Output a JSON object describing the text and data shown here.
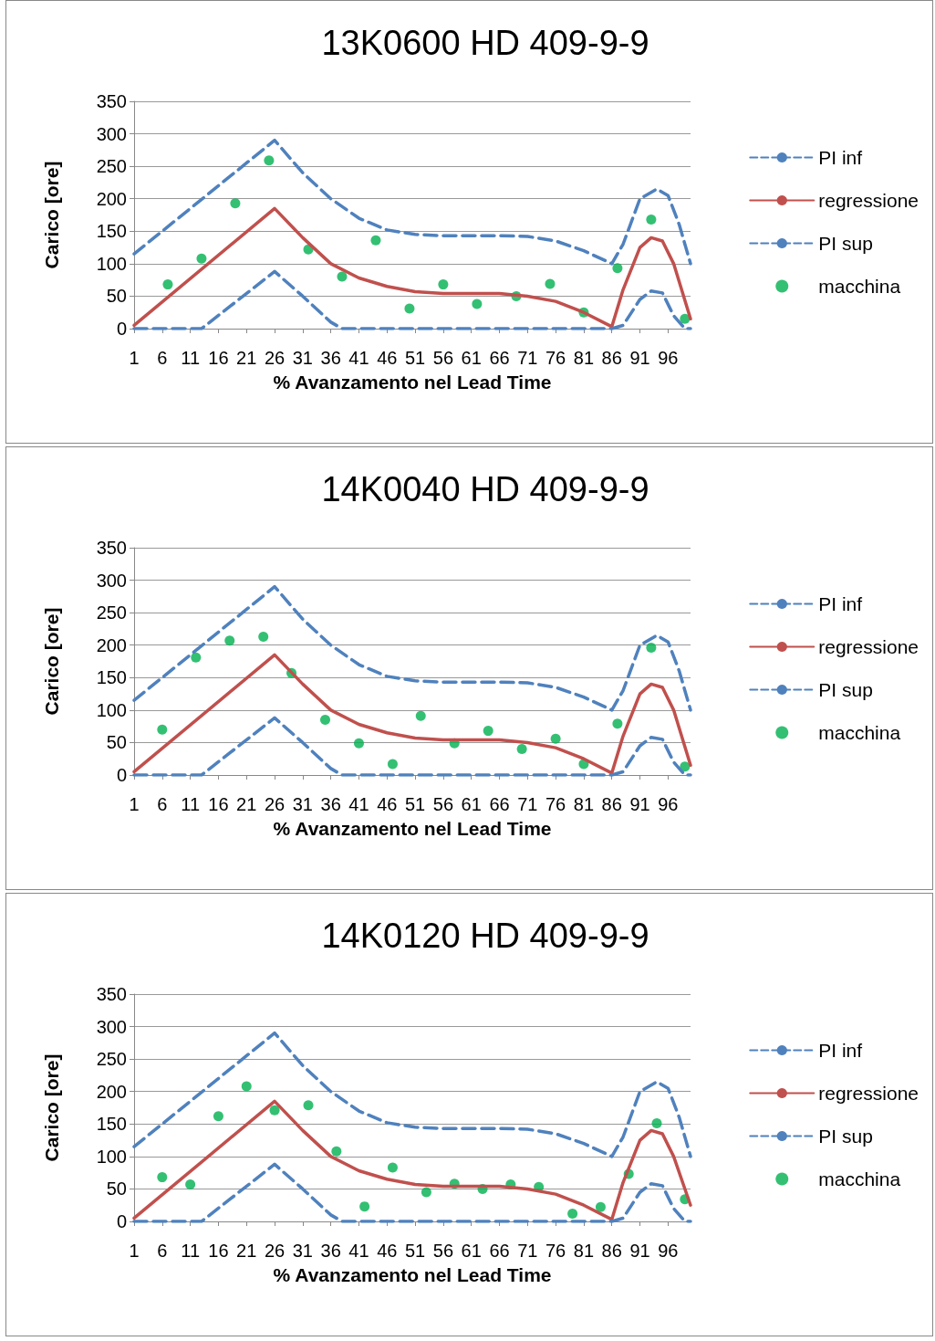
{
  "chart_data": [
    {
      "type": "line",
      "title": "13K0600 HD 409-9-9",
      "xlabel": "% Avanzamento nel Lead Time",
      "ylabel": "Carico [ore]",
      "xlim": [
        1,
        100
      ],
      "xticks": [
        1,
        6,
        11,
        16,
        21,
        26,
        31,
        36,
        41,
        46,
        51,
        56,
        61,
        66,
        71,
        76,
        81,
        86,
        91,
        96
      ],
      "ylim": [
        0,
        350
      ],
      "yticks": [
        0,
        50,
        100,
        150,
        200,
        250,
        300,
        350
      ],
      "grid": "y",
      "legend": "right",
      "series": [
        {
          "name": "PI inf",
          "type": "line",
          "color": "#4f81bd",
          "line_style": "dashed",
          "marker": "none",
          "x": [
            1,
            26,
            31,
            36,
            41,
            46,
            51,
            56,
            66,
            71,
            76,
            81,
            86,
            88,
            91,
            94,
            96,
            98,
            100
          ],
          "values": [
            115,
            290,
            240,
            200,
            170,
            152,
            145,
            143,
            143,
            142,
            135,
            120,
            100,
            130,
            200,
            215,
            205,
            160,
            100
          ]
        },
        {
          "name": "regressione",
          "type": "line",
          "color": "#c0504d",
          "line_style": "solid",
          "marker": "none",
          "x": [
            1,
            26,
            31,
            36,
            41,
            46,
            51,
            56,
            66,
            71,
            76,
            81,
            86,
            88,
            91,
            93,
            95,
            97,
            100
          ],
          "values": [
            5,
            185,
            140,
            100,
            78,
            65,
            57,
            54,
            54,
            50,
            42,
            25,
            3,
            60,
            125,
            140,
            135,
            100,
            15
          ]
        },
        {
          "name": "PI sup",
          "type": "line",
          "color": "#4f81bd",
          "line_style": "dashed",
          "marker": "none",
          "x": [
            1,
            13,
            26,
            31,
            36,
            38,
            86,
            88,
            91,
            93,
            95,
            97,
            99,
            100
          ],
          "values": [
            0,
            0,
            88,
            50,
            10,
            0,
            0,
            5,
            45,
            58,
            55,
            20,
            0,
            0
          ]
        },
        {
          "name": "macchina",
          "type": "scatter",
          "color": "#00b050",
          "marker": "circle",
          "x": [
            7,
            13,
            19,
            25,
            32,
            38,
            44,
            50,
            56,
            62,
            69,
            75,
            81,
            87,
            93,
            99
          ],
          "values": [
            68,
            108,
            193,
            259,
            122,
            80,
            136,
            31,
            68,
            38,
            50,
            69,
            25,
            93,
            168,
            15
          ]
        }
      ]
    },
    {
      "type": "line",
      "title": "14K0040 HD 409-9-9",
      "xlabel": "% Avanzamento nel Lead Time",
      "ylabel": "Carico [ore]",
      "xlim": [
        1,
        100
      ],
      "xticks": [
        1,
        6,
        11,
        16,
        21,
        26,
        31,
        36,
        41,
        46,
        51,
        56,
        61,
        66,
        71,
        76,
        81,
        86,
        91,
        96
      ],
      "ylim": [
        0,
        350
      ],
      "yticks": [
        0,
        50,
        100,
        150,
        200,
        250,
        300,
        350
      ],
      "grid": "y",
      "legend": "right",
      "series": [
        {
          "name": "PI inf",
          "type": "line",
          "color": "#4f81bd",
          "line_style": "dashed",
          "marker": "none",
          "x": [
            1,
            26,
            31,
            36,
            41,
            46,
            51,
            56,
            66,
            71,
            76,
            81,
            86,
            88,
            91,
            94,
            96,
            98,
            100
          ],
          "values": [
            115,
            290,
            240,
            200,
            170,
            152,
            145,
            143,
            143,
            142,
            135,
            120,
            100,
            130,
            200,
            215,
            205,
            160,
            100
          ]
        },
        {
          "name": "regressione",
          "type": "line",
          "color": "#c0504d",
          "line_style": "solid",
          "marker": "none",
          "x": [
            1,
            26,
            31,
            36,
            41,
            46,
            51,
            56,
            66,
            71,
            76,
            81,
            86,
            88,
            91,
            93,
            95,
            97,
            100
          ],
          "values": [
            5,
            185,
            140,
            100,
            78,
            65,
            57,
            54,
            54,
            50,
            42,
            25,
            3,
            60,
            125,
            140,
            135,
            100,
            15
          ]
        },
        {
          "name": "PI sup",
          "type": "line",
          "color": "#4f81bd",
          "line_style": "dashed",
          "marker": "none",
          "x": [
            1,
            13,
            26,
            31,
            36,
            38,
            86,
            88,
            91,
            93,
            95,
            97,
            99,
            100
          ],
          "values": [
            0,
            0,
            88,
            50,
            10,
            0,
            0,
            5,
            45,
            58,
            55,
            20,
            0,
            0
          ]
        },
        {
          "name": "macchina",
          "type": "scatter",
          "color": "#00b050",
          "marker": "circle",
          "x": [
            6,
            12,
            18,
            24,
            29,
            35,
            41,
            47,
            52,
            58,
            64,
            70,
            76,
            81,
            87,
            93,
            99
          ],
          "values": [
            70,
            181,
            207,
            213,
            157,
            85,
            49,
            17,
            91,
            49,
            68,
            40,
            56,
            17,
            79,
            196,
            13
          ]
        }
      ]
    },
    {
      "type": "line",
      "title": "14K0120 HD 409-9-9",
      "xlabel": "% Avanzamento nel Lead Time",
      "ylabel": "Carico [ore]",
      "xlim": [
        1,
        100
      ],
      "xticks": [
        1,
        6,
        11,
        16,
        21,
        26,
        31,
        36,
        41,
        46,
        51,
        56,
        61,
        66,
        71,
        76,
        81,
        86,
        91,
        96
      ],
      "ylim": [
        0,
        350
      ],
      "yticks": [
        0,
        50,
        100,
        150,
        200,
        250,
        300,
        350
      ],
      "grid": "y",
      "legend": "right",
      "series": [
        {
          "name": "PI inf",
          "type": "line",
          "color": "#4f81bd",
          "line_style": "dashed",
          "marker": "none",
          "x": [
            1,
            26,
            31,
            36,
            41,
            46,
            51,
            56,
            66,
            71,
            76,
            81,
            86,
            88,
            91,
            94,
            96,
            98,
            100
          ],
          "values": [
            115,
            290,
            240,
            200,
            170,
            152,
            145,
            143,
            143,
            142,
            135,
            120,
            100,
            130,
            200,
            215,
            205,
            160,
            100
          ]
        },
        {
          "name": "regressione",
          "type": "line",
          "color": "#c0504d",
          "line_style": "solid",
          "marker": "none",
          "x": [
            1,
            26,
            31,
            36,
            41,
            46,
            51,
            56,
            66,
            71,
            76,
            81,
            86,
            88,
            91,
            93,
            95,
            97,
            100
          ],
          "values": [
            5,
            185,
            140,
            100,
            78,
            65,
            57,
            54,
            54,
            50,
            42,
            25,
            3,
            60,
            125,
            140,
            135,
            100,
            25
          ]
        },
        {
          "name": "PI sup",
          "type": "line",
          "color": "#4f81bd",
          "line_style": "dashed",
          "marker": "none",
          "x": [
            1,
            13,
            26,
            31,
            36,
            38,
            86,
            88,
            91,
            93,
            95,
            97,
            99,
            100
          ],
          "values": [
            0,
            0,
            88,
            50,
            10,
            0,
            0,
            5,
            45,
            58,
            55,
            20,
            0,
            0
          ]
        },
        {
          "name": "macchina",
          "type": "scatter",
          "color": "#00b050",
          "marker": "circle",
          "x": [
            6,
            11,
            16,
            21,
            26,
            32,
            37,
            42,
            47,
            53,
            58,
            63,
            68,
            73,
            79,
            84,
            89,
            94,
            99
          ],
          "values": [
            68,
            57,
            162,
            208,
            171,
            179,
            108,
            23,
            83,
            45,
            58,
            50,
            57,
            53,
            12,
            22,
            73,
            151,
            34
          ]
        }
      ]
    }
  ]
}
